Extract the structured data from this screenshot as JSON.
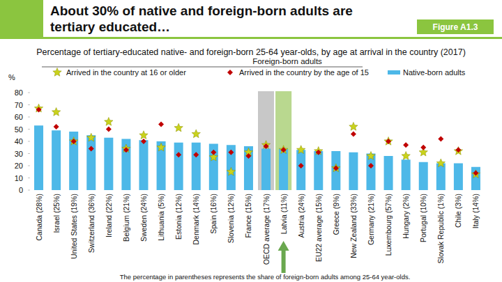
{
  "chart_data": {
    "type": "bar",
    "title": "About 30% of native and foreign-born adults are tertiary educated…",
    "figure_label": "Figure A1.3",
    "subtitle": "Percentage of tertiary-educated native- and foreign-born 25-64 year-olds, by age at arrival in the country (2017)",
    "legend_title": "Foreign-born adults",
    "ylabel": "%",
    "note": "The percentage in parentheses represents the share of foreign-born adults among 25-64 year-olds.",
    "categories": [
      "Canada (28%)",
      "Israel (25%)",
      "United States (19%)",
      "Switzerland (36%)",
      "Ireland (22%)",
      "Belgium (21%)",
      "Sweden (24%)",
      "Lithuania (5%)",
      "Estonia (12%)",
      "Denmark (14%)",
      "Spain (16%)",
      "Slovenia (12%)",
      "France (15%)",
      "OECD average (17%)",
      "Latvia (11%)",
      "Austria (24%)",
      "EU22 average (15%)",
      "Greece (9%)",
      "New Zealand (33%)",
      "Germany (21%)",
      "Luxembourg (57%)",
      "Hungary (2%)",
      "Portugal (10%)",
      "Slovak Republic (1%)",
      "Chile (3%)",
      "Italy (14%)"
    ],
    "series": [
      {
        "name": "Arrived in the country at 16 or older",
        "type": "scatter",
        "marker": "star",
        "color": "#c9d21c",
        "values": [
          67,
          64,
          40,
          43,
          56,
          34,
          45,
          35,
          51,
          46,
          27,
          15,
          31,
          37,
          33,
          33,
          32,
          18,
          52,
          28,
          40,
          28,
          31,
          22,
          32,
          13
        ]
      },
      {
        "name": "Arrived in the country by the age of 15",
        "type": "scatter",
        "marker": "diamond",
        "color": "#c00000",
        "values": [
          66,
          52,
          40,
          34,
          50,
          33,
          40,
          54,
          29,
          29,
          31,
          31,
          28,
          36,
          33,
          20,
          31,
          18,
          46,
          20,
          40,
          37,
          35,
          42,
          33,
          14
        ]
      },
      {
        "name": "Native-born adults",
        "type": "bar",
        "color": "#4db8e8",
        "values": [
          53,
          49,
          48,
          45,
          43,
          42,
          41,
          40,
          39,
          39,
          38,
          37,
          36,
          34,
          34,
          33,
          32,
          32,
          31,
          30,
          28,
          25,
          23,
          22,
          22,
          19
        ]
      }
    ],
    "ylim": [
      0,
      80
    ],
    "yticks": [
      0,
      10,
      20,
      30,
      40,
      50,
      60,
      70,
      80
    ],
    "grid": false,
    "legend": "top"
  }
}
